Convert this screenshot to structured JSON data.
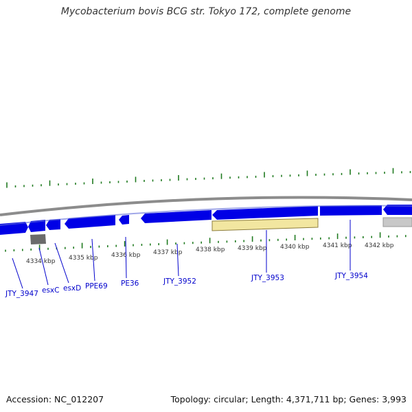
{
  "title": "Mycobacterium bovis BCG str. Tokyo 172, complete genome",
  "footer": {
    "accession": "Accession: NC_012207",
    "summary": "Topology: circular; Length: 4,371,711 bp; Genes: 3,993"
  },
  "colors": {
    "backbone": "#8c8c8c",
    "gene_forward": "#0000e6",
    "gene_reverse": "#0000e6",
    "gene_shadow": "#5f6ad9",
    "feature_yellow": "#f2e6a0",
    "feature_gray": "#6b6b6b",
    "feature_lightgray": "#c8c8c8",
    "tick": "#1f7a1f",
    "label": "#0000cc",
    "leader": "#0000cc"
  },
  "kbp_labels": [
    "4334 kbp",
    "4335 kbp",
    "4336 kbp",
    "4337 kbp",
    "4338 kbp",
    "4339 kbp",
    "4340 kbp",
    "4341 kbp",
    "4342 kbp"
  ],
  "gene_labels": [
    "JTY_3947",
    "esxC",
    "esxD",
    "PPE69",
    "PE36",
    "JTY_3952",
    "JTY_3953",
    "JTY_3954"
  ]
}
